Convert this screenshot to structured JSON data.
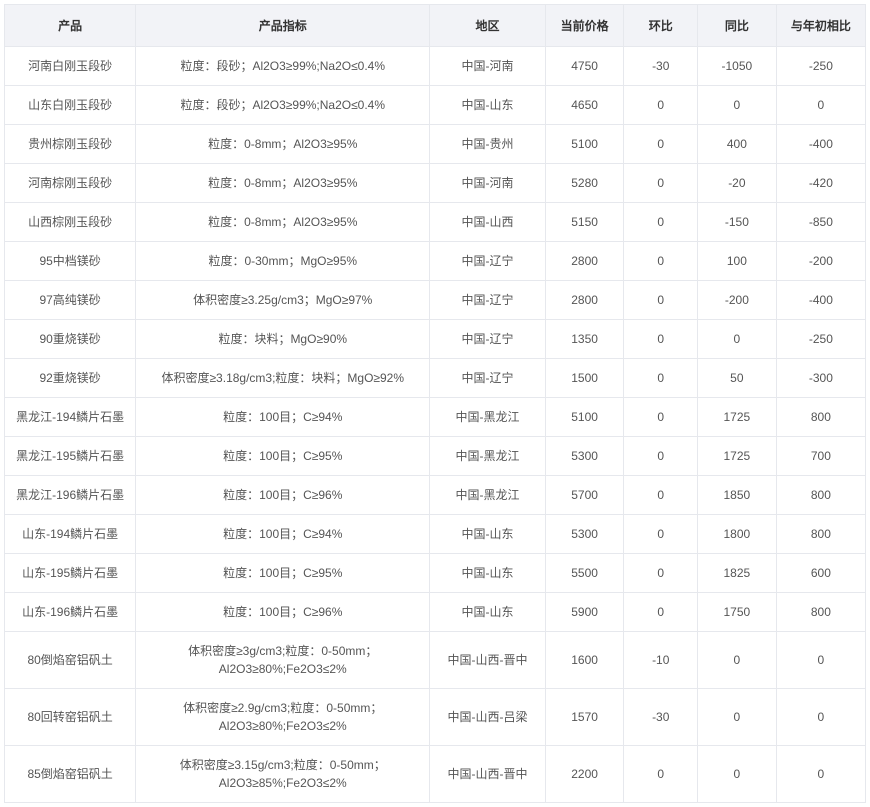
{
  "table": {
    "columns": [
      {
        "key": "product",
        "label": "产品",
        "class": "col-product"
      },
      {
        "key": "spec",
        "label": "产品指标",
        "class": "col-spec"
      },
      {
        "key": "region",
        "label": "地区",
        "class": "col-region"
      },
      {
        "key": "price",
        "label": "当前价格",
        "class": "col-price"
      },
      {
        "key": "mom",
        "label": "环比",
        "class": "col-mom"
      },
      {
        "key": "yoy",
        "label": "同比",
        "class": "col-yoy"
      },
      {
        "key": "ytd",
        "label": "与年初相比",
        "class": "col-ytd"
      }
    ],
    "rows": [
      {
        "product": "河南白刚玉段砂",
        "spec": "粒度：段砂；Al2O3≥99%;Na2O≤0.4%",
        "region": "中国-河南",
        "price": "4750",
        "mom": "-30",
        "yoy": "-1050",
        "ytd": "-250"
      },
      {
        "product": "山东白刚玉段砂",
        "spec": "粒度：段砂；Al2O3≥99%;Na2O≤0.4%",
        "region": "中国-山东",
        "price": "4650",
        "mom": "0",
        "yoy": "0",
        "ytd": "0"
      },
      {
        "product": "贵州棕刚玉段砂",
        "spec": "粒度：0-8mm；Al2O3≥95%",
        "region": "中国-贵州",
        "price": "5100",
        "mom": "0",
        "yoy": "400",
        "ytd": "-400"
      },
      {
        "product": "河南棕刚玉段砂",
        "spec": "粒度：0-8mm；Al2O3≥95%",
        "region": "中国-河南",
        "price": "5280",
        "mom": "0",
        "yoy": "-20",
        "ytd": "-420"
      },
      {
        "product": "山西棕刚玉段砂",
        "spec": "粒度：0-8mm；Al2O3≥95%",
        "region": "中国-山西",
        "price": "5150",
        "mom": "0",
        "yoy": "-150",
        "ytd": "-850"
      },
      {
        "product": "95中档镁砂",
        "spec": "粒度：0-30mm；MgO≥95%",
        "region": "中国-辽宁",
        "price": "2800",
        "mom": "0",
        "yoy": "100",
        "ytd": "-200"
      },
      {
        "product": "97高纯镁砂",
        "spec": "体积密度≥3.25g/cm3；MgO≥97%",
        "region": "中国-辽宁",
        "price": "2800",
        "mom": "0",
        "yoy": "-200",
        "ytd": "-400"
      },
      {
        "product": "90重烧镁砂",
        "spec": "粒度：块料；MgO≥90%",
        "region": "中国-辽宁",
        "price": "1350",
        "mom": "0",
        "yoy": "0",
        "ytd": "-250"
      },
      {
        "product": "92重烧镁砂",
        "spec": "体积密度≥3.18g/cm3;粒度：块料；MgO≥92%",
        "region": "中国-辽宁",
        "price": "1500",
        "mom": "0",
        "yoy": "50",
        "ytd": "-300"
      },
      {
        "product": "黑龙江-194鳞片石墨",
        "spec": "粒度：100目；C≥94%",
        "region": "中国-黑龙江",
        "price": "5100",
        "mom": "0",
        "yoy": "1725",
        "ytd": "800"
      },
      {
        "product": "黑龙江-195鳞片石墨",
        "spec": "粒度：100目；C≥95%",
        "region": "中国-黑龙江",
        "price": "5300",
        "mom": "0",
        "yoy": "1725",
        "ytd": "700"
      },
      {
        "product": "黑龙江-196鳞片石墨",
        "spec": "粒度：100目；C≥96%",
        "region": "中国-黑龙江",
        "price": "5700",
        "mom": "0",
        "yoy": "1850",
        "ytd": "800"
      },
      {
        "product": "山东-194鳞片石墨",
        "spec": "粒度：100目；C≥94%",
        "region": "中国-山东",
        "price": "5300",
        "mom": "0",
        "yoy": "1800",
        "ytd": "800"
      },
      {
        "product": "山东-195鳞片石墨",
        "spec": "粒度：100目；C≥95%",
        "region": "中国-山东",
        "price": "5500",
        "mom": "0",
        "yoy": "1825",
        "ytd": "600"
      },
      {
        "product": "山东-196鳞片石墨",
        "spec": "粒度：100目；C≥96%",
        "region": "中国-山东",
        "price": "5900",
        "mom": "0",
        "yoy": "1750",
        "ytd": "800"
      },
      {
        "product": "80倒焰窑铝矾土",
        "spec": "体积密度≥3g/cm3;粒度：0-50mm；Al2O3≥80%;Fe2O3≤2%",
        "region": "中国-山西-晋中",
        "price": "1600",
        "mom": "-10",
        "yoy": "0",
        "ytd": "0"
      },
      {
        "product": "80回转窑铝矾土",
        "spec": "体积密度≥2.9g/cm3;粒度：0-50mm；Al2O3≥80%;Fe2O3≤2%",
        "region": "中国-山西-吕梁",
        "price": "1570",
        "mom": "-30",
        "yoy": "0",
        "ytd": "0"
      },
      {
        "product": "85倒焰窑铝矾土",
        "spec": "体积密度≥3.15g/cm3;粒度：0-50mm；Al2O3≥85%;Fe2O3≤2%",
        "region": "中国-山西-晋中",
        "price": "2200",
        "mom": "0",
        "yoy": "0",
        "ytd": "0"
      }
    ],
    "header_bg": "#f2f3f7",
    "border_color": "#e6e8ed",
    "header_text_color": "#333333",
    "cell_text_color": "#555555",
    "header_fontsize": 12,
    "cell_fontsize": 12
  }
}
